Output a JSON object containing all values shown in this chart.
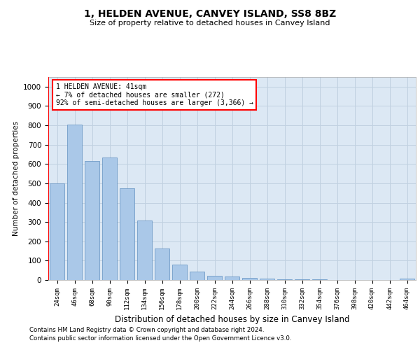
{
  "title": "1, HELDEN AVENUE, CANVEY ISLAND, SS8 8BZ",
  "subtitle": "Size of property relative to detached houses in Canvey Island",
  "xlabel": "Distribution of detached houses by size in Canvey Island",
  "ylabel": "Number of detached properties",
  "footer_line1": "Contains HM Land Registry data © Crown copyright and database right 2024.",
  "footer_line2": "Contains public sector information licensed under the Open Government Licence v3.0.",
  "categories": [
    "24sqm",
    "46sqm",
    "68sqm",
    "90sqm",
    "112sqm",
    "134sqm",
    "156sqm",
    "178sqm",
    "200sqm",
    "222sqm",
    "244sqm",
    "266sqm",
    "288sqm",
    "310sqm",
    "332sqm",
    "354sqm",
    "376sqm",
    "398sqm",
    "420sqm",
    "442sqm",
    "464sqm"
  ],
  "values": [
    500,
    805,
    615,
    632,
    475,
    308,
    162,
    78,
    44,
    22,
    18,
    10,
    8,
    5,
    2,
    5,
    1,
    1,
    0,
    0,
    8
  ],
  "bar_color": "#aac8e8",
  "bar_edge_color": "#6090c0",
  "grid_color": "#c0d0e0",
  "background_color": "#dce8f4",
  "annotation_line1": "1 HELDEN AVENUE: 41sqm",
  "annotation_line2": "← 7% of detached houses are smaller (272)",
  "annotation_line3": "92% of semi-detached houses are larger (3,366) →",
  "ylim": [
    0,
    1050
  ],
  "yticks": [
    0,
    100,
    200,
    300,
    400,
    500,
    600,
    700,
    800,
    900,
    1000
  ]
}
